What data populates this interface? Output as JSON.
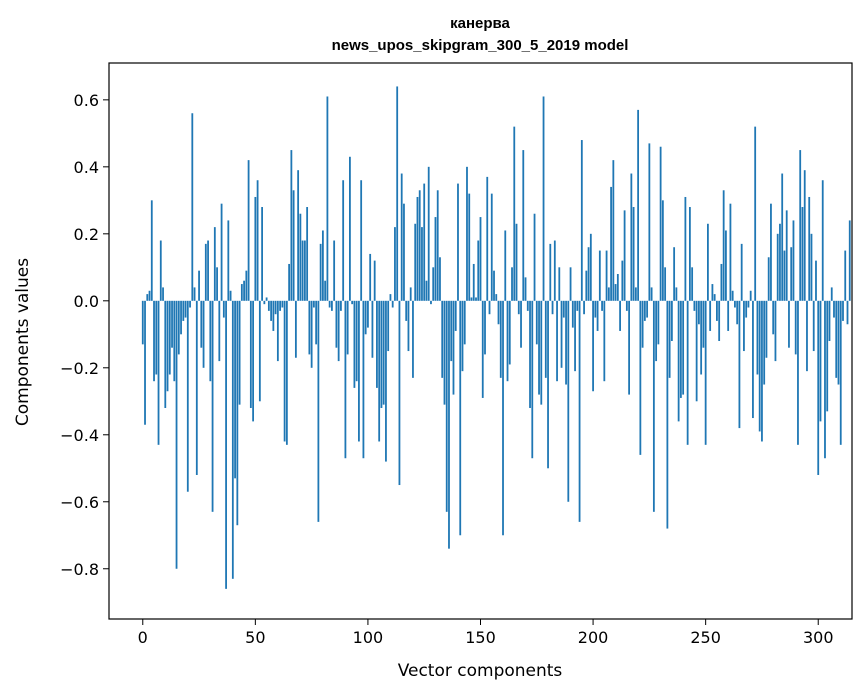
{
  "chart_data": {
    "type": "bar",
    "title_lines": [
      "канерва",
      "news_upos_skipgram_300_5_2019 model"
    ],
    "xlabel": "Vector components",
    "ylabel": "Components values",
    "xlim": [
      -15,
      315
    ],
    "ylim": [
      -0.95,
      0.71
    ],
    "xticks": [
      0,
      50,
      100,
      150,
      200,
      250,
      300
    ],
    "xtick_labels": [
      "0",
      "50",
      "100",
      "150",
      "200",
      "250",
      "300"
    ],
    "yticks": [
      -0.8,
      -0.6,
      -0.4,
      -0.2,
      0.0,
      0.2,
      0.4,
      0.6
    ],
    "ytick_labels": [
      "−0.8",
      "−0.6",
      "−0.4",
      "−0.2",
      "0.0",
      "0.2",
      "0.4",
      "0.6"
    ],
    "bar_color": "#1f77b4",
    "grid": false,
    "x_start": 0,
    "values": [
      -0.13,
      -0.37,
      0.02,
      0.03,
      0.3,
      -0.24,
      -0.22,
      -0.43,
      0.18,
      0.04,
      -0.32,
      -0.27,
      -0.22,
      -0.14,
      -0.24,
      -0.8,
      -0.16,
      -0.1,
      -0.06,
      -0.05,
      -0.57,
      -0.02,
      0.56,
      0.04,
      -0.52,
      0.09,
      -0.14,
      -0.2,
      0.17,
      0.18,
      -0.24,
      -0.63,
      0.22,
      0.1,
      -0.18,
      0.29,
      -0.05,
      -0.86,
      0.24,
      0.03,
      -0.83,
      -0.53,
      -0.67,
      -0.31,
      0.05,
      0.06,
      0.09,
      0.42,
      -0.32,
      -0.36,
      0.31,
      0.36,
      -0.3,
      0.28,
      -0.01,
      0.01,
      -0.03,
      -0.06,
      -0.09,
      -0.04,
      -0.18,
      -0.03,
      -0.02,
      -0.42,
      -0.43,
      0.11,
      0.45,
      0.33,
      -0.17,
      0.39,
      0.26,
      0.18,
      0.18,
      0.28,
      -0.16,
      -0.2,
      -0.02,
      -0.13,
      -0.66,
      0.17,
      0.21,
      0.06,
      0.61,
      -0.02,
      -0.03,
      0.18,
      -0.14,
      -0.18,
      -0.03,
      0.36,
      -0.47,
      -0.16,
      0.43,
      -0.01,
      -0.26,
      -0.24,
      -0.42,
      0.36,
      -0.47,
      -0.1,
      -0.08,
      0.14,
      -0.17,
      0.12,
      -0.26,
      -0.42,
      -0.32,
      -0.31,
      -0.48,
      -0.15,
      0.02,
      -0.02,
      0.22,
      0.64,
      -0.55,
      0.38,
      0.29,
      -0.06,
      -0.15,
      0.04,
      -0.23,
      0.23,
      0.31,
      0.33,
      0.22,
      0.35,
      0.06,
      0.4,
      -0.01,
      0.1,
      0.25,
      0.33,
      0.13,
      -0.23,
      -0.31,
      -0.63,
      -0.74,
      -0.18,
      -0.28,
      -0.09,
      0.35,
      -0.7,
      -0.21,
      -0.13,
      0.4,
      0.32,
      0.01,
      0.11,
      0.01,
      0.18,
      0.25,
      -0.29,
      -0.16,
      0.37,
      -0.04,
      0.32,
      0.09,
      0.02,
      -0.07,
      -0.23,
      -0.7,
      0.21,
      -0.24,
      -0.19,
      0.1,
      0.52,
      0.23,
      -0.04,
      -0.14,
      0.45,
      0.07,
      -0.03,
      -0.32,
      -0.47,
      0.26,
      -0.13,
      -0.28,
      -0.31,
      0.61,
      -0.23,
      -0.5,
      0.17,
      -0.04,
      0.18,
      -0.24,
      0.1,
      -0.2,
      -0.05,
      -0.25,
      -0.6,
      0.1,
      -0.08,
      -0.21,
      -0.03,
      -0.66,
      0.48,
      -0.04,
      0.09,
      0.16,
      0.2,
      -0.27,
      -0.05,
      -0.09,
      0.15,
      -0.03,
      -0.24,
      0.15,
      0.04,
      0.34,
      0.42,
      0.05,
      0.08,
      -0.09,
      0.12,
      0.27,
      -0.03,
      -0.28,
      0.38,
      0.28,
      0.04,
      0.57,
      -0.46,
      -0.14,
      -0.06,
      -0.05,
      0.47,
      0.04,
      -0.63,
      -0.18,
      -0.13,
      0.46,
      0.3,
      0.1,
      -0.68,
      -0.23,
      -0.12,
      0.16,
      0.04,
      -0.36,
      -0.29,
      -0.28,
      0.31,
      -0.43,
      0.28,
      0.1,
      -0.03,
      -0.3,
      -0.07,
      -0.22,
      -0.14,
      -0.43,
      0.23,
      -0.09,
      0.05,
      0.02,
      -0.06,
      -0.12,
      0.11,
      0.33,
      0.21,
      -0.09,
      0.29,
      0.03,
      -0.02,
      -0.07,
      -0.38,
      0.17,
      -0.15,
      -0.05,
      -0.02,
      0.03,
      -0.35,
      0.52,
      -0.22,
      -0.39,
      -0.42,
      -0.25,
      -0.17,
      0.13,
      0.29,
      -0.1,
      -0.18,
      0.2,
      0.23,
      0.38,
      0.15,
      0.27,
      -0.14,
      0.16,
      0.24,
      -0.16,
      -0.43,
      0.45,
      0.28,
      0.39,
      -0.21,
      0.31,
      0.2,
      -0.15,
      0.12,
      -0.52,
      -0.36,
      0.36,
      -0.47,
      -0.33,
      -0.12,
      0.04,
      -0.05,
      -0.23,
      -0.25,
      -0.43,
      -0.06,
      0.15,
      -0.07,
      0.24
    ]
  }
}
